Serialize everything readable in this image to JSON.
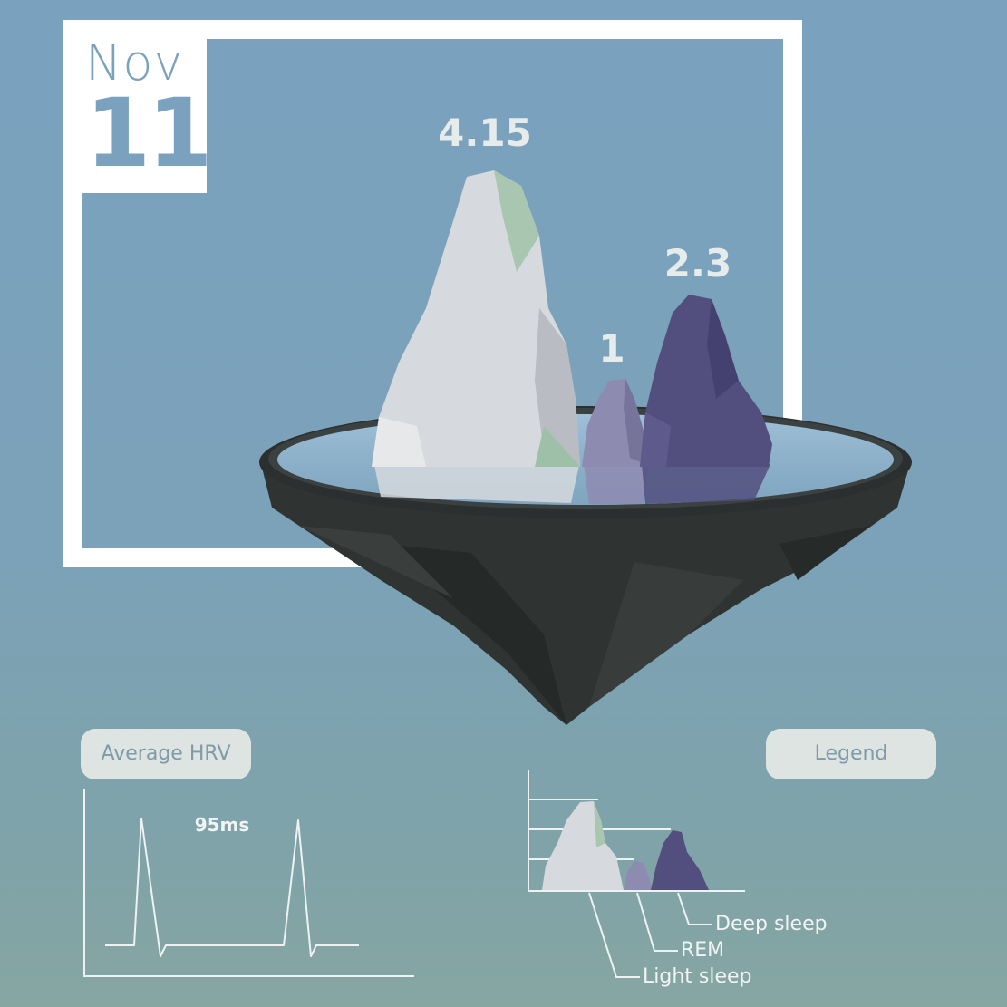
{
  "date": {
    "month": "Nov",
    "day": "11"
  },
  "peaks": {
    "light_sleep_value": "4.15",
    "rem_value": "1",
    "deep_sleep_value": "2.3"
  },
  "hrv": {
    "pill_label": "Average HRV",
    "value": "95ms"
  },
  "legend": {
    "pill_label": "Legend",
    "items": [
      "Deep sleep",
      "REM",
      "Light sleep"
    ]
  },
  "colors": {
    "background": "#7aa2bf",
    "light_sleep": "#d6d9dd",
    "rem": "#8e8bb0",
    "deep_sleep": "#524f7e",
    "island_rock": "#2f3433",
    "pill_bg": "#dde4e2"
  }
}
